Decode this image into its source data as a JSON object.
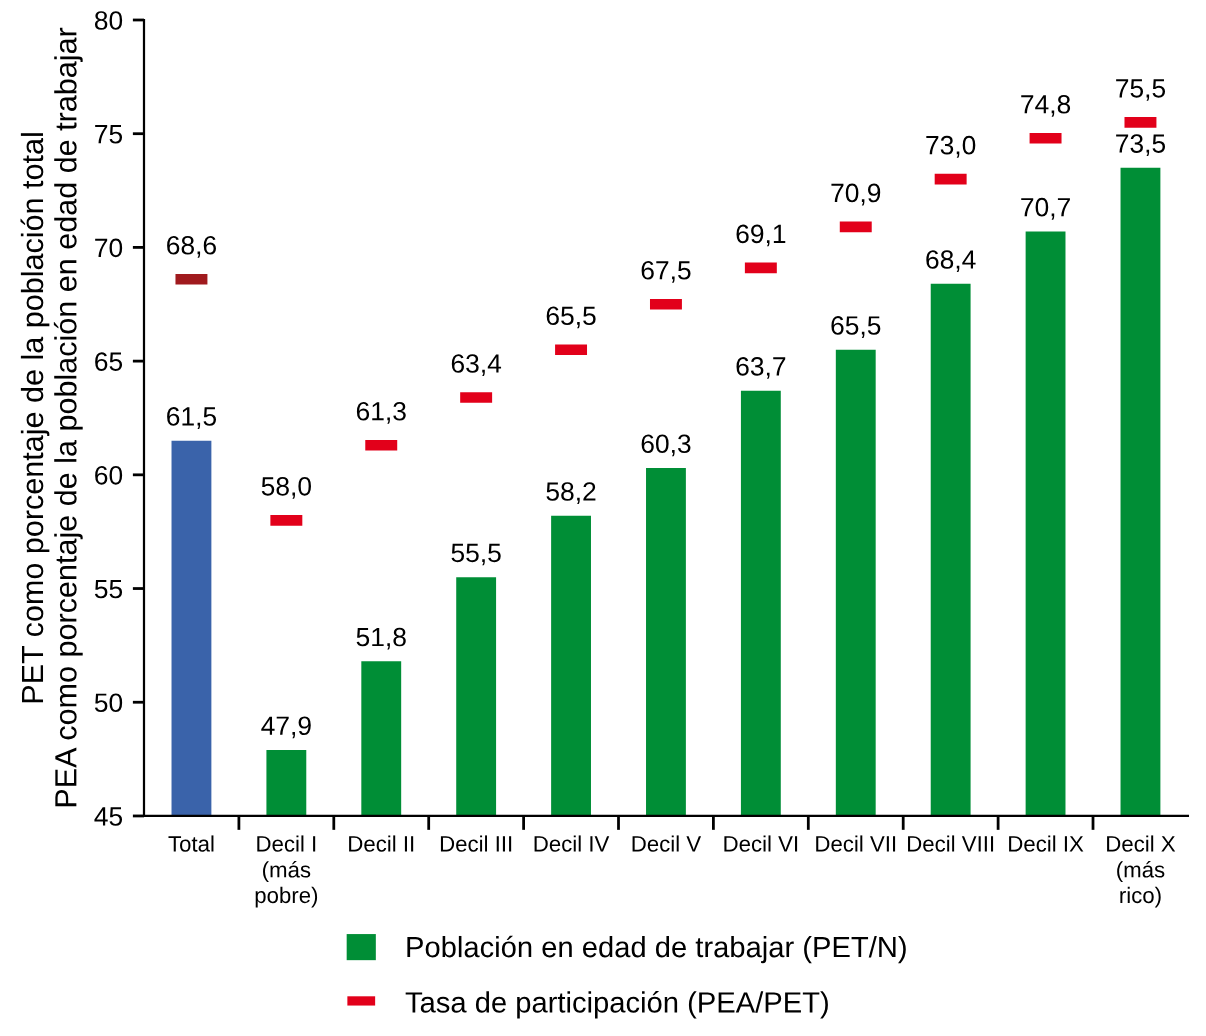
{
  "chart_data": {
    "type": "bar",
    "ylabel": "PET como porcentaje de la población total\nPEA como porcentaje de la población en edad de trabajar",
    "categories": [
      "Total",
      "Decil I\n(más\npobre)",
      "Decil II",
      "Decil III",
      "Decil IV",
      "Decil V",
      "Decil VI",
      "Decil VII",
      "Decil VIII",
      "Decil IX",
      "Decil X\n(más\nrico)"
    ],
    "series": [
      {
        "name": "Población en edad de trabajar (PET/N)",
        "color": "#008e36",
        "colors": [
          "#3a63aa",
          "#008e36",
          "#008e36",
          "#008e36",
          "#008e36",
          "#008e36",
          "#008e36",
          "#008e36",
          "#008e36",
          "#008e36",
          "#008e36"
        ],
        "values": [
          61.5,
          47.9,
          51.8,
          55.5,
          58.2,
          60.3,
          63.7,
          65.5,
          68.4,
          70.7,
          73.5
        ],
        "value_labels": [
          "61,5",
          "47,9",
          "51,8",
          "55,5",
          "58,2",
          "60,3",
          "63,7",
          "65,5",
          "68,4",
          "70,7",
          "73,5"
        ]
      },
      {
        "name": "Tasa de participación (PEA/PET)",
        "type": "scatter",
        "marker": "square",
        "color": "#e2001a",
        "colors": [
          "#a01a1e",
          "#e2001a",
          "#e2001a",
          "#e2001a",
          "#e2001a",
          "#e2001a",
          "#e2001a",
          "#e2001a",
          "#e2001a",
          "#e2001a",
          "#e2001a"
        ],
        "values": [
          68.6,
          58.0,
          61.3,
          63.4,
          65.5,
          67.5,
          69.1,
          70.9,
          73.0,
          74.8,
          75.5
        ],
        "value_labels": [
          "68,6",
          "58,0",
          "61,3",
          "63,4",
          "65,5",
          "67,5",
          "69,1",
          "70,9",
          "73,0",
          "74,8",
          "75,5"
        ]
      }
    ],
    "ylim": [
      45,
      80
    ],
    "yticks": [
      45,
      50,
      55,
      60,
      65,
      70,
      75,
      80
    ],
    "legend": "bottom"
  }
}
